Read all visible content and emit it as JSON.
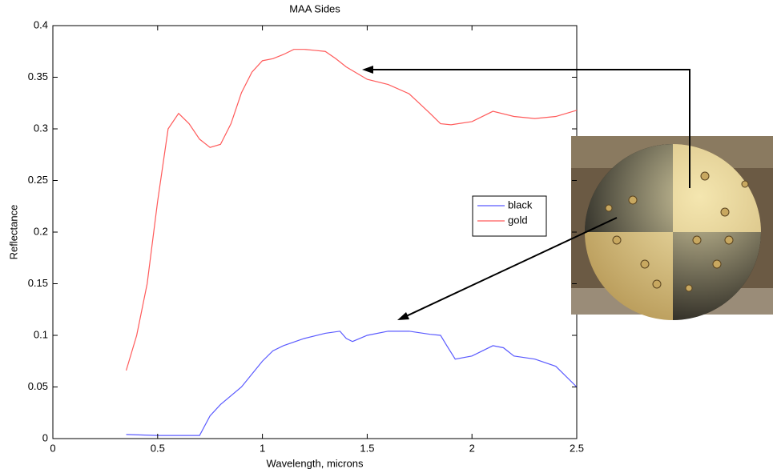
{
  "chart_data": {
    "type": "line",
    "title": "MAA Sides",
    "x_label": "Wavelength, microns",
    "y_label": "Reflectance",
    "xlim": [
      0,
      2.5
    ],
    "xticks": [
      0,
      0.5,
      1,
      1.5,
      2,
      2.5
    ],
    "ylim": [
      0,
      0.4
    ],
    "yticks": [
      0,
      0.05,
      0.1,
      0.15,
      0.2,
      0.25,
      0.3,
      0.35,
      0.4
    ],
    "legend": "east",
    "series": [
      {
        "name": "black",
        "color": "#5a5aff",
        "x": [
          0.35,
          0.5,
          0.7,
          0.75,
          0.8,
          0.9,
          1.0,
          1.05,
          1.1,
          1.2,
          1.3,
          1.37,
          1.4,
          1.43,
          1.5,
          1.6,
          1.7,
          1.8,
          1.85,
          1.88,
          1.92,
          2.0,
          2.1,
          2.15,
          2.2,
          2.3,
          2.4,
          2.5
        ],
        "values": [
          0.004,
          0.003,
          0.003,
          0.022,
          0.033,
          0.05,
          0.075,
          0.085,
          0.09,
          0.097,
          0.102,
          0.104,
          0.097,
          0.094,
          0.1,
          0.104,
          0.104,
          0.101,
          0.1,
          0.09,
          0.077,
          0.08,
          0.09,
          0.088,
          0.08,
          0.077,
          0.07,
          0.05
        ]
      },
      {
        "name": "gold",
        "color": "#ff5a5a",
        "x": [
          0.35,
          0.4,
          0.45,
          0.5,
          0.55,
          0.6,
          0.65,
          0.7,
          0.75,
          0.8,
          0.85,
          0.9,
          0.95,
          1.0,
          1.05,
          1.1,
          1.15,
          1.2,
          1.25,
          1.3,
          1.35,
          1.4,
          1.5,
          1.6,
          1.7,
          1.8,
          1.85,
          1.9,
          2.0,
          2.1,
          2.2,
          2.3,
          2.4,
          2.5
        ],
        "values": [
          0.066,
          0.1,
          0.15,
          0.23,
          0.3,
          0.315,
          0.305,
          0.29,
          0.282,
          0.285,
          0.305,
          0.335,
          0.355,
          0.366,
          0.368,
          0.372,
          0.377,
          0.377,
          0.376,
          0.375,
          0.368,
          0.36,
          0.348,
          0.343,
          0.334,
          0.315,
          0.305,
          0.304,
          0.307,
          0.317,
          0.312,
          0.31,
          0.312,
          0.318
        ]
      }
    ]
  }
}
